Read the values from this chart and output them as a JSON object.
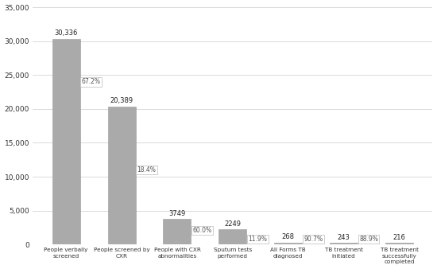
{
  "categories": [
    "People verbally\nscreened",
    "People screened by\nCXR",
    "People with CXR\nabnormalities",
    "Sputum tests\nperformed",
    "All Forms TB\ndiagnosed",
    "TB treatment\ninitiated",
    "TB treatment\nsuccessfully\ncompleted"
  ],
  "values": [
    30336,
    20389,
    3749,
    2249,
    268,
    243,
    216
  ],
  "bar_color": "#aaaaaa",
  "bar_edge_color": "#999999",
  "ylim": [
    0,
    35000
  ],
  "yticks": [
    0,
    5000,
    10000,
    15000,
    20000,
    25000,
    30000,
    35000
  ],
  "background_color": "#ffffff",
  "grid_color": "#cccccc",
  "value_labels": [
    "30,336",
    "20,389",
    "3749",
    "2249",
    "268",
    "243",
    "216"
  ],
  "pct_labels": [
    "67.2%",
    "18.4%",
    "60.0%",
    "11.9%",
    "90.7%",
    "88.9%"
  ],
  "pct_after_bar": [
    0,
    1,
    2,
    3,
    4,
    5
  ],
  "pct_y_values": [
    24000,
    11000,
    2100,
    800,
    800,
    800
  ]
}
